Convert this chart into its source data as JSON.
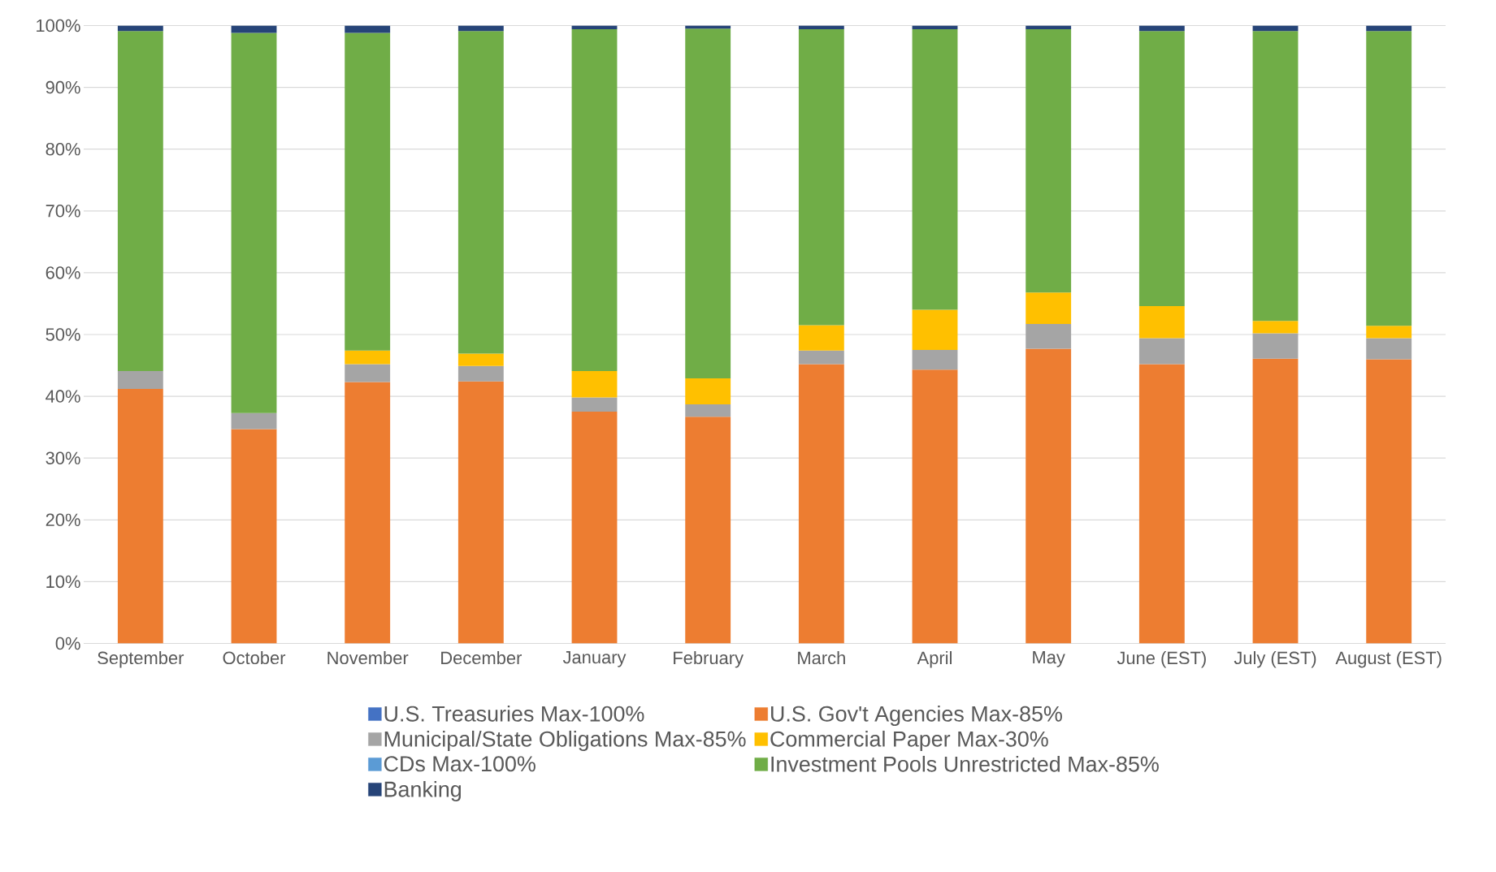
{
  "chart_data": {
    "type": "bar",
    "stacked": true,
    "categories": [
      "September",
      "October",
      "November",
      "December",
      "January",
      "February",
      "March",
      "April",
      "May",
      "June (EST)",
      "July (EST)",
      "August (EST)"
    ],
    "series": [
      {
        "name": "U.S. Treasuries Max-100%",
        "color": "#4472c4",
        "values": [
          null,
          null,
          null,
          null,
          null,
          null,
          null,
          null,
          null,
          null,
          null,
          null
        ]
      },
      {
        "name": "U.S. Gov't Agencies Max-85%",
        "color": "#ed7d31",
        "values": [
          41.2,
          34.7,
          42.3,
          42.4,
          37.5,
          36.7,
          45.2,
          44.3,
          47.7,
          45.2,
          46.1,
          46.0
        ]
      },
      {
        "name": "Municipal/State Obligations Max-85%",
        "color": "#a5a5a5",
        "values": [
          2.9,
          2.6,
          2.9,
          2.5,
          2.3,
          2.0,
          2.2,
          3.2,
          4.0,
          4.2,
          4.1,
          3.4
        ]
      },
      {
        "name": "Commercial Paper Max-30%",
        "color": "#ffc000",
        "values": [
          null,
          null,
          2.2,
          2.0,
          4.3,
          4.2,
          4.1,
          6.5,
          5.1,
          5.2,
          2.0,
          2.0
        ]
      },
      {
        "name": "CDs Max-100%",
        "color": "#5b9bd5",
        "values": [
          null,
          null,
          null,
          null,
          null,
          null,
          null,
          null,
          null,
          null,
          null,
          null
        ]
      },
      {
        "name": "Investment Pools Unrestricted Max-85%",
        "color": "#70ad47",
        "values": [
          55.0,
          61.5,
          51.4,
          52.2,
          55.3,
          56.6,
          47.9,
          45.4,
          42.6,
          44.5,
          46.9,
          47.7
        ]
      },
      {
        "name": "Banking",
        "color": "#264478",
        "values": [
          0.9,
          1.2,
          1.2,
          0.9,
          0.6,
          0.5,
          0.6,
          0.6,
          0.6,
          0.9,
          0.9,
          0.9
        ]
      }
    ],
    "ylim": [
      0,
      100
    ],
    "yticks": [
      {
        "value": 0,
        "label": "0%"
      },
      {
        "value": 10,
        "label": "10%"
      },
      {
        "value": 20,
        "label": "20%"
      },
      {
        "value": 30,
        "label": "30%"
      },
      {
        "value": 40,
        "label": "40%"
      },
      {
        "value": 50,
        "label": "50%"
      },
      {
        "value": 60,
        "label": "60%"
      },
      {
        "value": 70,
        "label": "70%"
      },
      {
        "value": 80,
        "label": "80%"
      },
      {
        "value": 90,
        "label": "90%"
      },
      {
        "value": 100,
        "label": "100%"
      }
    ],
    "grid": "y",
    "legend": "bottom"
  }
}
